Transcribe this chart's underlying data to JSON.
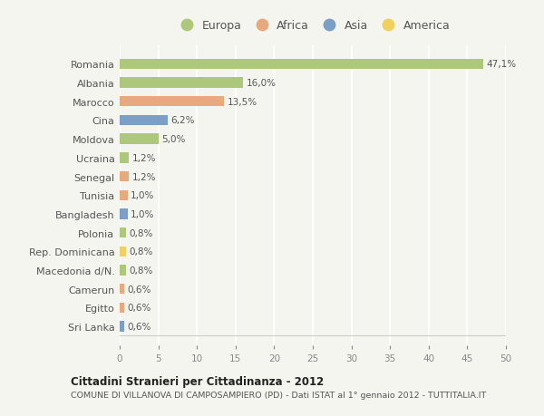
{
  "categories": [
    "Romania",
    "Albania",
    "Marocco",
    "Cina",
    "Moldova",
    "Ucraina",
    "Senegal",
    "Tunisia",
    "Bangladesh",
    "Polonia",
    "Rep. Dominicana",
    "Macedonia d/N.",
    "Camerun",
    "Egitto",
    "Sri Lanka"
  ],
  "values": [
    47.1,
    16.0,
    13.5,
    6.2,
    5.0,
    1.2,
    1.2,
    1.0,
    1.0,
    0.8,
    0.8,
    0.8,
    0.6,
    0.6,
    0.6
  ],
  "labels": [
    "47,1%",
    "16,0%",
    "13,5%",
    "6,2%",
    "5,0%",
    "1,2%",
    "1,2%",
    "1,0%",
    "1,0%",
    "0,8%",
    "0,8%",
    "0,8%",
    "0,6%",
    "0,6%",
    "0,6%"
  ],
  "continents": [
    "Europa",
    "Europa",
    "Africa",
    "Asia",
    "Europa",
    "Europa",
    "Africa",
    "Africa",
    "Asia",
    "Europa",
    "America",
    "Europa",
    "Africa",
    "Africa",
    "Asia"
  ],
  "colors": {
    "Europa": "#adc87a",
    "Africa": "#e8a97e",
    "Asia": "#7b9fc7",
    "America": "#f0d060"
  },
  "xlim": [
    0,
    50
  ],
  "xticks": [
    0,
    5,
    10,
    15,
    20,
    25,
    30,
    35,
    40,
    45,
    50
  ],
  "title": "Cittadini Stranieri per Cittadinanza - 2012",
  "subtitle": "COMUNE DI VILLANOVA DI CAMPOSAMPIERO (PD) - Dati ISTAT al 1° gennaio 2012 - TUTTITALIA.IT",
  "background_color": "#f5f5f0",
  "grid_color": "#ffffff",
  "bar_height": 0.55,
  "legend_order": [
    "Europa",
    "Africa",
    "Asia",
    "America"
  ]
}
